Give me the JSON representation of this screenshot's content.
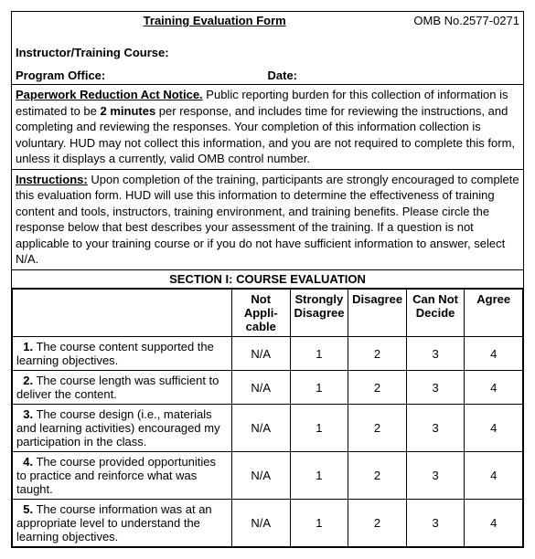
{
  "header": {
    "title": "Training Evaluation Form",
    "omb": "OMB No.2577-0271"
  },
  "labels": {
    "instructor": "Instructor/Training Course:",
    "program_office": "Program Office:",
    "date": "Date:"
  },
  "paperwork": {
    "title": "Paperwork Reduction Act Notice.",
    "part1": "Public reporting burden for this collection of information is estimated to be ",
    "bold": "2 minutes",
    "part2": " per response, and includes time for reviewing the instructions, and completing and reviewing the responses.  Your completion of this information collection is voluntary. HUD may not collect this information, and you are not required to complete this form, unless it displays a currently, valid OMB control number."
  },
  "instructions": {
    "title": "Instructions:",
    "body": "Upon completion of the training, participants are strongly encouraged to complete this evaluation form.  HUD will use this information to determine the effectiveness of training content and tools, instructors, training environment, and training benefits. Please circle the response below that best describes your assessment of the training.  If a question is not applicable to your training course or if you do not have sufficient information to answer, select N/A."
  },
  "section1": {
    "heading": "SECTION I:  COURSE EVALUATION",
    "columns": {
      "na": "Not Appli-cable",
      "sd": "Strongly Disagree",
      "d": "Disagree",
      "cnd": "Can Not Decide",
      "a": "Agree"
    },
    "scale": {
      "na": "N/A",
      "sd": "1",
      "d": "2",
      "cnd": "3",
      "a": "4"
    },
    "items": [
      {
        "num": "1.",
        "text": "The course content supported the learning objectives."
      },
      {
        "num": "2.",
        "text": "The course length was sufficient to deliver the content."
      },
      {
        "num": "3.",
        "text": "The course design (i.e., materials and learning activities) encouraged my participation in the class."
      },
      {
        "num": "4.",
        "text": "The course provided opportunities to practice and reinforce what was taught."
      },
      {
        "num": "5.",
        "text": "The course information was at an appropriate level to understand the learning objectives."
      }
    ]
  }
}
